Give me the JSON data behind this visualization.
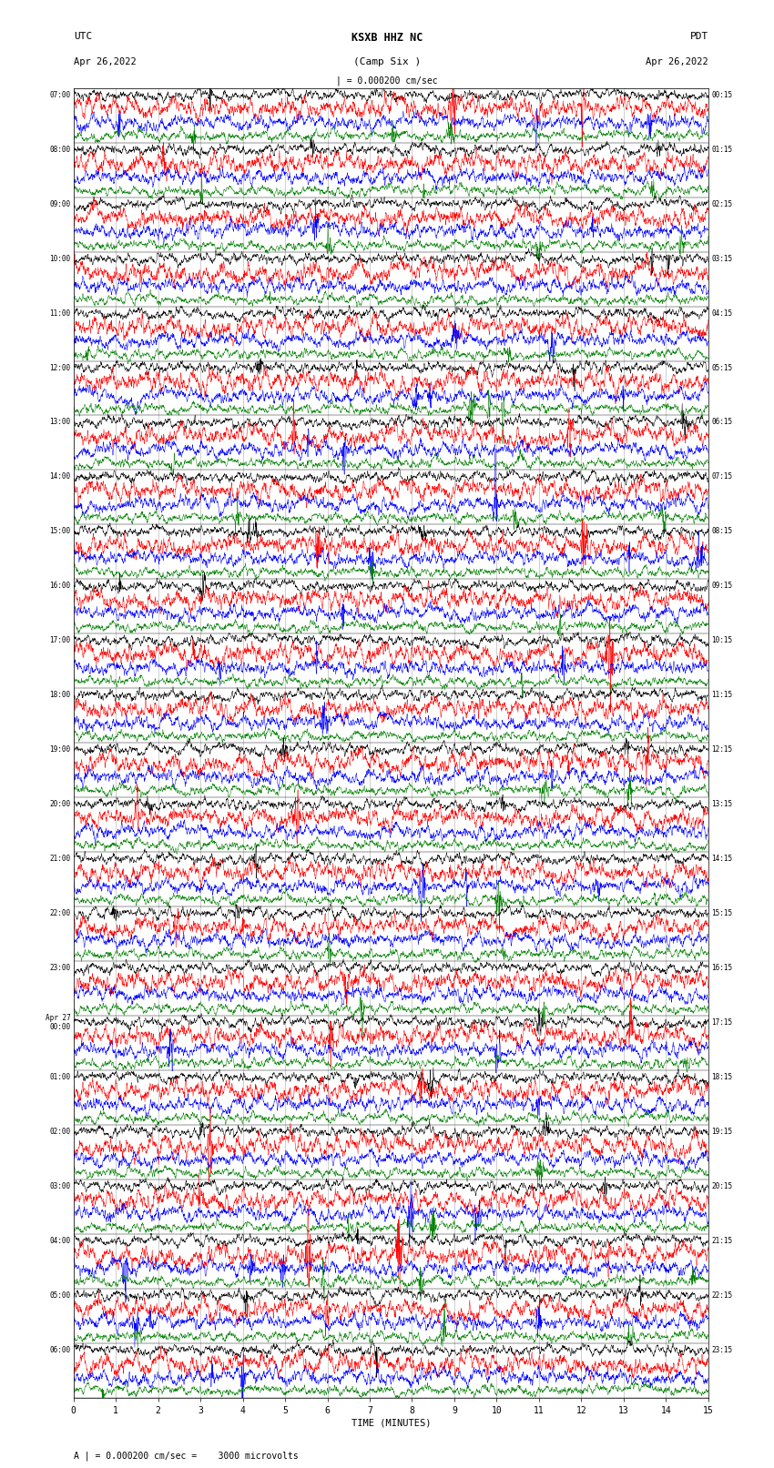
{
  "title_line1": "KSXB HHZ NC",
  "title_line2": "(Camp Six )",
  "scale_label": "| = 0.000200 cm/sec",
  "left_header_line1": "UTC",
  "left_header_line2": "Apr 26,2022",
  "right_header_line1": "PDT",
  "right_header_line2": "Apr 26,2022",
  "bottom_label": "TIME (MINUTES)",
  "bottom_note": "A | = 0.000200 cm/sec =    3000 microvolts",
  "bg_color": "#ffffff",
  "trace_colors": [
    "black",
    "red",
    "blue",
    "green"
  ],
  "num_rows": 24,
  "traces_per_row": 4,
  "minutes_per_row": 15,
  "left_times_utc": [
    "07:00",
    "08:00",
    "09:00",
    "10:00",
    "11:00",
    "12:00",
    "13:00",
    "14:00",
    "15:00",
    "16:00",
    "17:00",
    "18:00",
    "19:00",
    "20:00",
    "21:00",
    "22:00",
    "23:00",
    "Apr 27\n00:00",
    "01:00",
    "02:00",
    "03:00",
    "04:00",
    "05:00",
    "06:00"
  ],
  "right_times_pdt": [
    "00:15",
    "01:15",
    "02:15",
    "03:15",
    "04:15",
    "05:15",
    "06:15",
    "07:15",
    "08:15",
    "09:15",
    "10:15",
    "11:15",
    "12:15",
    "13:15",
    "14:15",
    "15:15",
    "16:15",
    "17:15",
    "18:15",
    "19:15",
    "20:15",
    "21:15",
    "22:15",
    "23:15"
  ],
  "fig_width": 8.5,
  "fig_height": 16.13,
  "dpi": 100,
  "n_samples": 3000,
  "amp_scales": [
    0.3,
    0.55,
    0.4,
    0.28
  ],
  "trace_lw": 0.35,
  "grid_color": "#aaaaaa",
  "grid_lw": 0.4
}
